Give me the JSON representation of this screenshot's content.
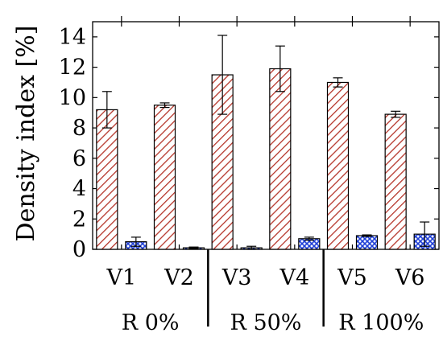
{
  "chart_data": {
    "type": "bar",
    "title": "",
    "ylabel": "Density index [%]",
    "xlabel": "",
    "ylim": [
      0,
      15
    ],
    "yticks": [
      0,
      2,
      4,
      6,
      8,
      10,
      12,
      14
    ],
    "categories": [
      "V1",
      "V2",
      "V3",
      "V4",
      "V5",
      "V6"
    ],
    "groups": [
      {
        "label": "R 0%",
        "categories": [
          "V1",
          "V2"
        ]
      },
      {
        "label": "R 50%",
        "categories": [
          "V3",
          "V4"
        ]
      },
      {
        "label": "R 100%",
        "categories": [
          "V5",
          "V6"
        ]
      }
    ],
    "series": [
      {
        "values": [
          9.2,
          9.5,
          11.5,
          11.9,
          11.0,
          8.9
        ],
        "errors": [
          1.2,
          0.15,
          2.6,
          1.5,
          0.3,
          0.2
        ],
        "color": "#b5352a",
        "fill": "diagonal-hatch"
      },
      {
        "values": [
          0.5,
          0.1,
          0.1,
          0.7,
          0.9,
          1.0
        ],
        "errors": [
          0.3,
          0.05,
          0.1,
          0.1,
          0.05,
          0.8
        ],
        "color": "#1f3fd6",
        "fill": "crosshatch"
      }
    ],
    "grid": false,
    "legend": "none"
  }
}
